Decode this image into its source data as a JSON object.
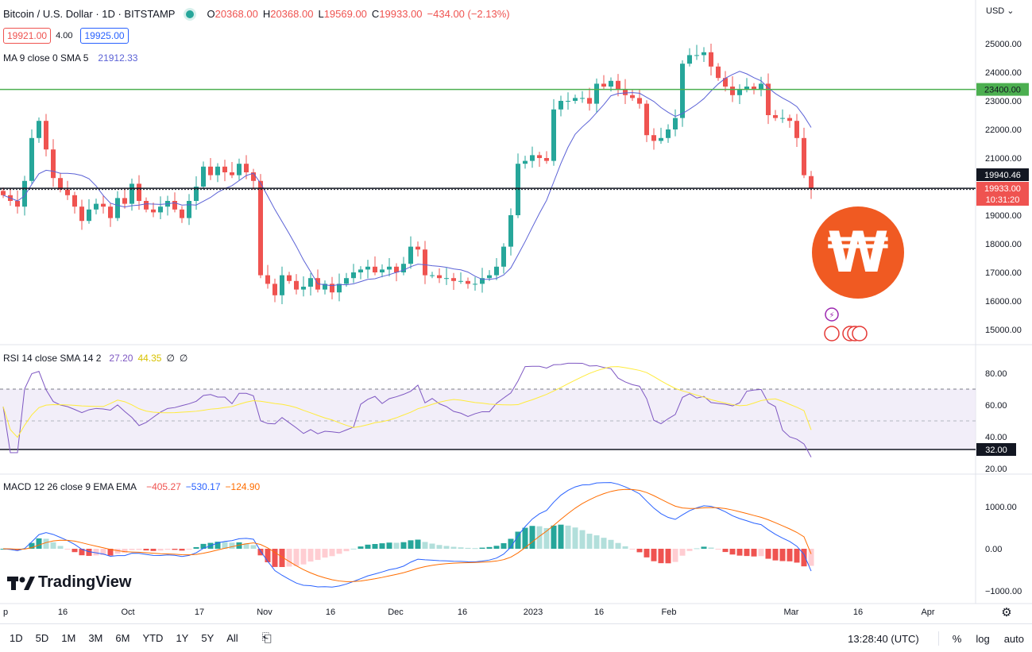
{
  "header": {
    "symbol": "Bitcoin / U.S. Dollar · 1D · BITSTAMP",
    "open_label": "O",
    "open": "20368.00",
    "high_label": "H",
    "high": "20368.00",
    "low_label": "L",
    "low": "19569.00",
    "close_label": "C",
    "close": "19933.00",
    "change": "−434.00 (−2.13%)",
    "bid": "19921.00",
    "spread": "4.00",
    "ask": "19925.00",
    "ma_label": "MA 9 close 0 SMA 5",
    "ma_value": "21912.33"
  },
  "currency_selector": "USD",
  "price_axis": {
    "ticks": [
      "25000.00",
      "24000.00",
      "23000.00",
      "22000.00",
      "21000.00",
      "19000.00",
      "18000.00",
      "17000.00",
      "16000.00",
      "15000.00"
    ],
    "green_line_label": "23400.00",
    "crosshair_label": "19940.46",
    "last_price_label": "19933.00",
    "countdown_label": "10:31:20"
  },
  "rsi": {
    "label": "RSI 14 close SMA 14 2",
    "value": "27.20",
    "sma_value": "44.35",
    "extra1": "∅",
    "extra2": "∅",
    "ticks": [
      "80.00",
      "60.00",
      "40.00",
      "20.00"
    ],
    "level_label": "32.00"
  },
  "macd": {
    "label": "MACD 12 26 close 9 EMA EMA",
    "hist_value": "−405.27",
    "macd_value": "−530.17",
    "signal_value": "−124.90",
    "ticks": [
      "1000.00",
      "0.00",
      "−1000.00"
    ]
  },
  "time_axis": {
    "labels": [
      "p",
      "16",
      "Oct",
      "17",
      "Nov",
      "16",
      "Dec",
      "16",
      "2023",
      "16",
      "Feb",
      "Mar",
      "16",
      "Apr"
    ]
  },
  "bottom_bar": {
    "timeframes": [
      "1D",
      "5D",
      "1M",
      "3M",
      "6M",
      "YTD",
      "1Y",
      "5Y",
      "All"
    ],
    "clock": "13:28:40 (UTC)",
    "percent": "%",
    "log": "log",
    "auto": "auto"
  },
  "branding": {
    "logo_text": "TradingView"
  },
  "colors": {
    "up": "#26a69a",
    "down": "#ef5350",
    "ma": "#5b62d6",
    "rsi": "#7e57c2",
    "rsi_sma": "#ffeb3b",
    "macd": "#2962ff",
    "signal": "#ff6d00",
    "green_line": "#4caf50",
    "watermark": "#f05a22"
  },
  "chart_data": [
    {
      "type": "candlestick",
      "title": "Bitcoin / U.S. Dollar · 1D · BITSTAMP",
      "x": [
        "Sep",
        "16",
        "Oct",
        "17",
        "Nov",
        "16",
        "Dec",
        "16",
        "2023",
        "16",
        "Feb",
        "Mar",
        "16",
        "Apr"
      ],
      "ylim": [
        14600,
        25800
      ],
      "close_path": [
        19700,
        19500,
        19300,
        20200,
        21700,
        22300,
        21300,
        20300,
        19900,
        19700,
        19300,
        18800,
        19200,
        19400,
        19300,
        18900,
        19600,
        19400,
        20100,
        19500,
        19200,
        19100,
        19300,
        19500,
        19200,
        18900,
        19500,
        20000,
        20700,
        20400,
        20700,
        20500,
        20400,
        20800,
        20500,
        20200,
        16900,
        16600,
        16200,
        16900,
        16700,
        16400,
        16500,
        16800,
        16400,
        16600,
        16300,
        16600,
        16800,
        17000,
        17100,
        17200,
        17000,
        17100,
        17200,
        17000,
        17300,
        17900,
        17800,
        16900,
        16900,
        16800,
        16800,
        16700,
        16700,
        16600,
        16600,
        16800,
        16900,
        17200,
        17900,
        19000,
        20800,
        20900,
        21100,
        21000,
        20900,
        22700,
        23000,
        23000,
        23100,
        23100,
        22900,
        23600,
        23500,
        23700,
        23400,
        23200,
        23100,
        22900,
        21800,
        21600,
        21700,
        22000,
        22400,
        24300,
        24600,
        24600,
        24700,
        24200,
        23800,
        23500,
        23200,
        23400,
        23500,
        23400,
        23600,
        22500,
        22400,
        22400,
        22300,
        21700,
        20400,
        19933
      ],
      "moving_average": {
        "label": "MA 9 close 0 SMA 5",
        "last": 21912.33
      },
      "horizontal_lines": [
        23400,
        19940.46
      ]
    },
    {
      "type": "line",
      "title": "RSI 14 close SMA 14 2",
      "ylim": [
        18,
        92
      ],
      "bands": [
        32,
        70
      ],
      "series": [
        {
          "name": "RSI",
          "last": 27.2
        },
        {
          "name": "SMA",
          "last": 44.35
        }
      ]
    },
    {
      "type": "bar",
      "title": "MACD 12 26 close 9 EMA EMA",
      "ylim": [
        -1150,
        1700
      ],
      "series": [
        {
          "name": "Histogram",
          "last": -405.27
        },
        {
          "name": "MACD",
          "last": -530.17
        },
        {
          "name": "Signal",
          "last": -124.9
        }
      ]
    }
  ]
}
